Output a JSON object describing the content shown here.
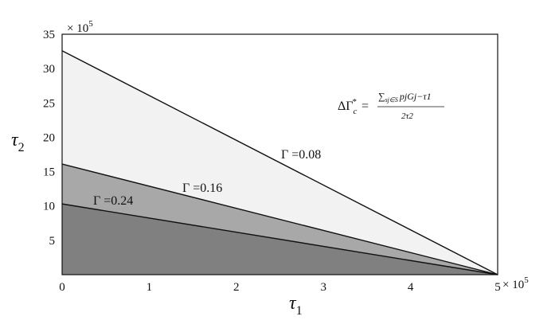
{
  "chart_data": {
    "type": "area",
    "xlim": [
      0,
      5
    ],
    "ylim": [
      0,
      35
    ],
    "x_ticks": [
      "0",
      "1",
      "2",
      "3",
      "4",
      "5"
    ],
    "y_ticks": [
      "5",
      "10",
      "15",
      "20",
      "25",
      "30",
      "35"
    ],
    "x_multiplier": "× 10",
    "x_multiplier_exp": "5",
    "y_multiplier": "× 10",
    "y_multiplier_exp": "5",
    "xlabel": "τ",
    "xlabel_sub": "1",
    "ylabel": "τ",
    "ylabel_sub": "2",
    "series": [
      {
        "name": "Γ =0.08",
        "x": [
          0,
          5
        ],
        "y": [
          32.6,
          0
        ],
        "fill": "#f2f2f2"
      },
      {
        "name": "Γ =0.16",
        "x": [
          0,
          5
        ],
        "y": [
          16.1,
          0
        ],
        "fill": "#a8a8a8"
      },
      {
        "name": "Γ =0.24",
        "x": [
          0,
          5
        ],
        "y": [
          10.3,
          0
        ],
        "fill": "#808080"
      }
    ],
    "annotation": {
      "lhs": "ΔΓ",
      "lhs_sub": "c",
      "lhs_sup": "*",
      "eq": "=",
      "numerator": "∑",
      "numerator_sub": "sj∈S",
      "numerator_rest": "pjGj−τ1",
      "denominator": "2τ2"
    },
    "grid": false
  }
}
